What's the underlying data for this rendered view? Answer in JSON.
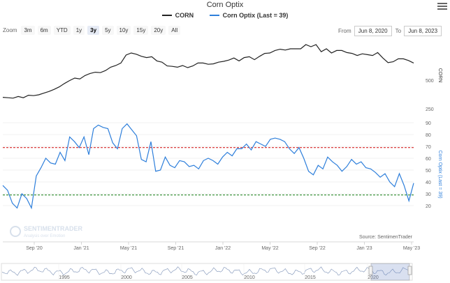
{
  "chart_data": {
    "type": "line",
    "title": "Corn Optix",
    "colors": {
      "corn": "#222222",
      "optix": "#2e7fdb",
      "upper": "#d62728",
      "lower": "#2c8a2c",
      "navigator": "#7a8fb5"
    },
    "zoom": {
      "label": "Zoom",
      "buttons": [
        "3m",
        "6m",
        "YTD",
        "1y",
        "3y",
        "5y",
        "10y",
        "15y",
        "20y",
        "All"
      ],
      "active": "3y"
    },
    "range": {
      "from_label": "From",
      "from": "Jun 8, 2020",
      "to_label": "To",
      "to": "Jun 8, 2023"
    },
    "x_tick_labels": [
      "Sep '20",
      "Jan '21",
      "May '21",
      "Sep '21",
      "Jan '22",
      "May '22",
      "Sep '22",
      "Jan '23",
      "May '23"
    ],
    "upper_panel": {
      "axis_title": "CORN",
      "y_tick_labels": [
        "500",
        "250"
      ],
      "series": {
        "name": "CORN",
        "values": [
          13.4,
          13.3,
          13.2,
          13.6,
          13.3,
          13.9,
          13.8,
          14.0,
          14.4,
          14.8,
          15.3,
          15.9,
          16.7,
          17.4,
          18.0,
          17.8,
          18.6,
          19.1,
          19.4,
          19.3,
          19.8,
          20.6,
          21.0,
          21.6,
          23.5,
          24.0,
          23.7,
          23.2,
          22.9,
          23.1,
          22.1,
          21.8,
          20.9,
          20.8,
          20.6,
          21.0,
          20.5,
          20.9,
          21.6,
          21.6,
          21.3,
          21.4,
          21.8,
          22.0,
          22.3,
          22.8,
          22.1,
          22.9,
          23.1,
          22.4,
          23.2,
          23.9,
          24.0,
          24.6,
          24.9,
          24.7,
          25.0,
          25.0,
          25.0,
          26.0,
          25.5,
          26.0,
          24.3,
          25.0,
          24.0,
          24.6,
          24.6,
          24.1,
          23.9,
          23.4,
          23.8,
          23.6,
          23.4,
          24.1,
          22.8,
          21.7,
          21.9,
          22.6,
          22.6,
          22.2,
          21.6
        ]
      }
    },
    "lower_panel": {
      "axis_title": "Corn Optix (Last = 39)",
      "ylim": [
        10,
        90
      ],
      "y_tick_labels": [
        "90",
        "80",
        "70",
        "60",
        "50",
        "40",
        "30",
        "20"
      ],
      "upper_threshold": 69,
      "lower_threshold": 29,
      "series": {
        "name": "Corn Optix (Last = 39)",
        "values": [
          37,
          33,
          22,
          18,
          30,
          26,
          18,
          45,
          52,
          60,
          56,
          55,
          65,
          58,
          78,
          74,
          69,
          78,
          63,
          85,
          88,
          86,
          85,
          73,
          68,
          85,
          89,
          84,
          79,
          59,
          57,
          74,
          49,
          50,
          61,
          54,
          52,
          58,
          57,
          53,
          54,
          51,
          58,
          60,
          58,
          55,
          61,
          65,
          62,
          68,
          68,
          72,
          67,
          74,
          72,
          70,
          76,
          77,
          76,
          74,
          68,
          64,
          69,
          60,
          49,
          46,
          54,
          51,
          61,
          57,
          54,
          49,
          53,
          59,
          55,
          57,
          52,
          51,
          48,
          44,
          47,
          40,
          36,
          47,
          37,
          24,
          39
        ]
      }
    },
    "navigator_years": [
      "1995",
      "2000",
      "2005",
      "2010",
      "2015",
      "2020"
    ],
    "watermark": {
      "line1": "SENTIMENTRADER",
      "line2": "Analysis over Emotion"
    },
    "source": "Source: SentimenTrader"
  }
}
